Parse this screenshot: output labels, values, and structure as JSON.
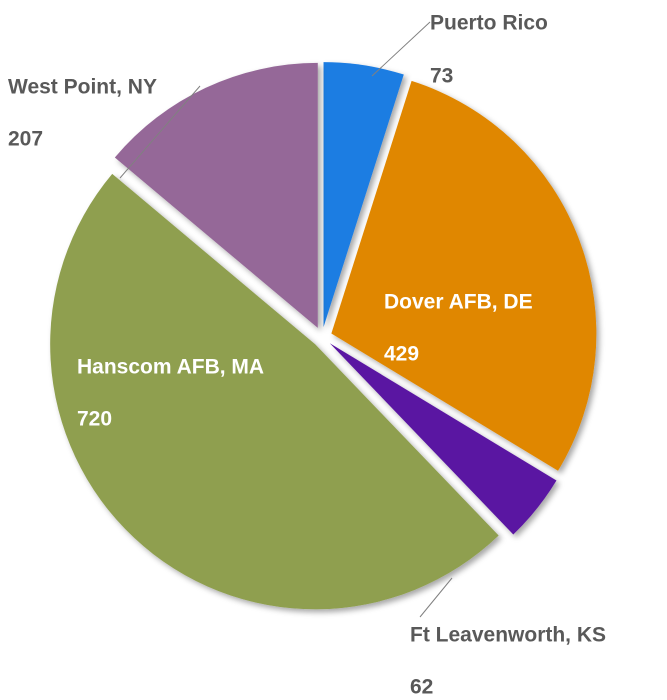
{
  "chart_data": {
    "type": "pie",
    "categories": [
      "Puerto Rico",
      "Dover AFB, DE",
      "Ft Leavenworth, KS",
      "Hanscom AFB, MA",
      "West Point, NY"
    ],
    "values": [
      73,
      429,
      62,
      720,
      207
    ],
    "colors": [
      "#1f7de2",
      "#e08700",
      "#5a14a2",
      "#8f9f50",
      "#956898"
    ]
  }
}
